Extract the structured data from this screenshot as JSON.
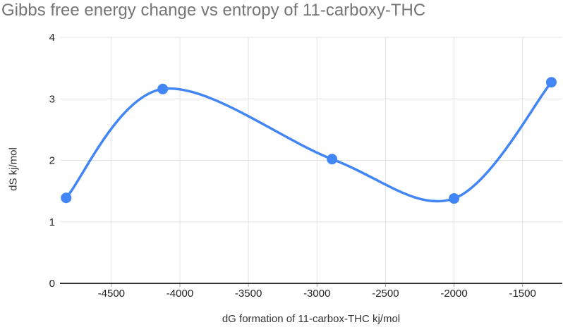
{
  "chart_data": {
    "type": "line",
    "smooth": true,
    "title": "Gibbs free energy change vs entropy of 11-carboxy-THC",
    "xlabel": "dG formation of 11-carbox-THC kj/mol",
    "ylabel": "dS kj/mol",
    "series": [
      {
        "name": "dS kj/mol",
        "points": [
          {
            "x": -4830,
            "y": 1.39
          },
          {
            "x": -4125,
            "y": 3.16
          },
          {
            "x": -2890,
            "y": 2.02
          },
          {
            "x": -2000,
            "y": 1.38
          },
          {
            "x": -1290,
            "y": 3.27
          }
        ]
      }
    ],
    "xlim": [
      -4875,
      -1210
    ],
    "ylim": [
      0,
      4
    ],
    "x_ticks": [
      -4500,
      -4000,
      -3500,
      -3000,
      -2500,
      -2000,
      -1500
    ],
    "x_tick_labels": [
      "-4500",
      "-4000",
      "-3500",
      "-3000",
      "-2500",
      "-2000",
      "-1500"
    ],
    "y_ticks": [
      0,
      1,
      2,
      3,
      4
    ],
    "y_tick_labels": [
      "0",
      "1",
      "2",
      "3",
      "4"
    ],
    "grid": true,
    "legend_position": "none",
    "colors": {
      "line": "#4285f4",
      "point": "#4285f4",
      "grid": "#e3e3e3",
      "baseline": "#333333",
      "tick_mark": "#9e9e9e",
      "tick_label": "#222222",
      "title": "#757575",
      "axis_title": "#333333",
      "background": "#ffffff"
    }
  }
}
